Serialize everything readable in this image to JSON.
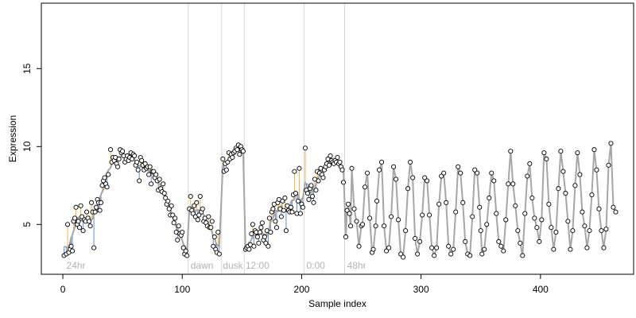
{
  "chart_data": {
    "type": "scatter",
    "title": "",
    "xlabel": "Sample index",
    "ylabel": "Expression",
    "xlim": [
      -18,
      478
    ],
    "ylim": [
      1.8,
      19.2
    ],
    "xticks": [
      0,
      100,
      200,
      300,
      400
    ],
    "yticks": [
      5,
      10,
      15
    ],
    "grid": false,
    "legend": "none",
    "colors": {
      "fit_line": "#a6a6a6",
      "residual_positive": "#f5b342",
      "residual_negative": "#5b8fd6",
      "point_stroke": "#000000",
      "point_fill": "#ffffff",
      "annotation": "#b3b3b3",
      "separator": "#d9d9d9"
    },
    "separators": [
      105,
      133,
      152,
      202,
      236
    ],
    "annotations": [
      {
        "x": 3,
        "text": "24hr"
      },
      {
        "x": 107,
        "text": "dawn"
      },
      {
        "x": 134,
        "text": "dusk"
      },
      {
        "x": 153,
        "text": "12:00"
      },
      {
        "x": 204,
        "text": "0:00"
      },
      {
        "x": 238,
        "text": "48hr"
      }
    ],
    "observed": [
      [
        1,
        3.0
      ],
      [
        3,
        3.1
      ],
      [
        4,
        5.0
      ],
      [
        5,
        3.2
      ],
      [
        6,
        3.4
      ],
      [
        7,
        3.6
      ],
      [
        8,
        3.3
      ],
      [
        9,
        5.2
      ],
      [
        10,
        5.4
      ],
      [
        11,
        6.1
      ],
      [
        12,
        5.0
      ],
      [
        13,
        5.2
      ],
      [
        14,
        4.8
      ],
      [
        15,
        6.2
      ],
      [
        16,
        5.5
      ],
      [
        17,
        4.6
      ],
      [
        18,
        5.3
      ],
      [
        19,
        5.2
      ],
      [
        20,
        5.8
      ],
      [
        21,
        5.4
      ],
      [
        22,
        5.2
      ],
      [
        23,
        4.9
      ],
      [
        24,
        6.4
      ],
      [
        25,
        5.8
      ],
      [
        26,
        3.5
      ],
      [
        27,
        5.8
      ],
      [
        28,
        6.1
      ],
      [
        29,
        6.6
      ],
      [
        30,
        6.4
      ],
      [
        31,
        5.9
      ],
      [
        32,
        6.4
      ],
      [
        33,
        7.5
      ],
      [
        34,
        7.8
      ],
      [
        35,
        8.0
      ],
      [
        36,
        7.6
      ],
      [
        37,
        7.4
      ],
      [
        38,
        8.2
      ],
      [
        40,
        9.8
      ],
      [
        41,
        9.0
      ],
      [
        42,
        9.3
      ],
      [
        43,
        9.1
      ],
      [
        44,
        9.3
      ],
      [
        45,
        8.9
      ],
      [
        46,
        8.7
      ],
      [
        47,
        9.2
      ],
      [
        48,
        9.8
      ],
      [
        49,
        9.6
      ],
      [
        50,
        9.7
      ],
      [
        51,
        9.4
      ],
      [
        52,
        9.0
      ],
      [
        53,
        9.2
      ],
      [
        54,
        9.4
      ],
      [
        55,
        9.1
      ],
      [
        56,
        9.3
      ],
      [
        57,
        9.6
      ],
      [
        58,
        9.2
      ],
      [
        59,
        9.5
      ],
      [
        60,
        9.4
      ],
      [
        61,
        8.8
      ],
      [
        62,
        9.0
      ],
      [
        63,
        8.5
      ],
      [
        64,
        7.8
      ],
      [
        65,
        9.3
      ],
      [
        66,
        9.1
      ],
      [
        67,
        8.8
      ],
      [
        68,
        8.5
      ],
      [
        69,
        8.9
      ],
      [
        70,
        8.6
      ],
      [
        71,
        8.7
      ],
      [
        72,
        8.2
      ],
      [
        73,
        8.7
      ],
      [
        74,
        7.6
      ],
      [
        75,
        8.4
      ],
      [
        76,
        8.4
      ],
      [
        77,
        8.0
      ],
      [
        78,
        8.2
      ],
      [
        79,
        7.8
      ],
      [
        80,
        7.2
      ],
      [
        81,
        7.9
      ],
      [
        82,
        7.3
      ],
      [
        83,
        7.1
      ],
      [
        84,
        7.6
      ],
      [
        85,
        7.0
      ],
      [
        86,
        6.7
      ],
      [
        87,
        6.3
      ],
      [
        88,
        6.5
      ],
      [
        89,
        6.0
      ],
      [
        90,
        5.6
      ],
      [
        91,
        6.2
      ],
      [
        92,
        5.6
      ],
      [
        93,
        5.1
      ],
      [
        94,
        5.4
      ],
      [
        95,
        4.5
      ],
      [
        96,
        4.0
      ],
      [
        97,
        4.9
      ],
      [
        98,
        4.4
      ],
      [
        99,
        4.3
      ],
      [
        100,
        4.5
      ],
      [
        101,
        3.5
      ],
      [
        102,
        3.1
      ],
      [
        103,
        3.3
      ],
      [
        104,
        3.0
      ],
      [
        106,
        6.0
      ],
      [
        107,
        6.8
      ],
      [
        108,
        5.9
      ],
      [
        109,
        5.7
      ],
      [
        110,
        6.2
      ],
      [
        111,
        5.5
      ],
      [
        112,
        6.4
      ],
      [
        113,
        5.3
      ],
      [
        114,
        5.6
      ],
      [
        115,
        6.8
      ],
      [
        116,
        5.8
      ],
      [
        117,
        6.0
      ],
      [
        118,
        5.2
      ],
      [
        119,
        5.4
      ],
      [
        120,
        5.1
      ],
      [
        121,
        4.9
      ],
      [
        122,
        5.5
      ],
      [
        123,
        4.8
      ],
      [
        124,
        4.8
      ],
      [
        125,
        5.2
      ],
      [
        126,
        3.6
      ],
      [
        127,
        4.2
      ],
      [
        128,
        3.4
      ],
      [
        129,
        3.2
      ],
      [
        130,
        4.5
      ],
      [
        131,
        3.1
      ],
      [
        134,
        9.2
      ],
      [
        135,
        8.4
      ],
      [
        136,
        8.9
      ],
      [
        137,
        8.5
      ],
      [
        138,
        9.0
      ],
      [
        139,
        9.6
      ],
      [
        140,
        9.2
      ],
      [
        141,
        9.5
      ],
      [
        142,
        9.3
      ],
      [
        143,
        9.6
      ],
      [
        144,
        9.7
      ],
      [
        145,
        9.9
      ],
      [
        146,
        9.8
      ],
      [
        147,
        10.1
      ],
      [
        148,
        9.5
      ],
      [
        149,
        10.0
      ],
      [
        150,
        9.8
      ],
      [
        151,
        9.7
      ],
      [
        153,
        3.4
      ],
      [
        154,
        3.5
      ],
      [
        155,
        3.6
      ],
      [
        156,
        3.4
      ],
      [
        157,
        3.7
      ],
      [
        158,
        4.4
      ],
      [
        159,
        5.0
      ],
      [
        160,
        3.6
      ],
      [
        161,
        4.6
      ],
      [
        162,
        4.5
      ],
      [
        163,
        4.2
      ],
      [
        164,
        3.8
      ],
      [
        165,
        4.5
      ],
      [
        166,
        4.8
      ],
      [
        167,
        5.1
      ],
      [
        168,
        4.0
      ],
      [
        169,
        4.2
      ],
      [
        170,
        3.8
      ],
      [
        171,
        4.6
      ],
      [
        172,
        3.6
      ],
      [
        173,
        5.4
      ],
      [
        174,
        4.5
      ],
      [
        175,
        5.8
      ],
      [
        176,
        6.0
      ],
      [
        177,
        6.3
      ],
      [
        178,
        5.2
      ],
      [
        179,
        4.8
      ],
      [
        180,
        6.4
      ],
      [
        181,
        6.6
      ],
      [
        182,
        6.0
      ],
      [
        183,
        5.5
      ],
      [
        184,
        6.5
      ],
      [
        185,
        5.9
      ],
      [
        186,
        6.7
      ],
      [
        187,
        4.6
      ],
      [
        188,
        6.2
      ],
      [
        189,
        5.9
      ],
      [
        190,
        5.8
      ],
      [
        191,
        6.1
      ],
      [
        192,
        5.8
      ],
      [
        193,
        6.9
      ],
      [
        194,
        8.4
      ],
      [
        195,
        7.0
      ],
      [
        196,
        5.7
      ],
      [
        197,
        6.5
      ],
      [
        198,
        8.6
      ],
      [
        199,
        5.7
      ],
      [
        200,
        6.3
      ],
      [
        201,
        6.1
      ],
      [
        203,
        9.9
      ],
      [
        204,
        7.2
      ],
      [
        205,
        7.0
      ],
      [
        206,
        6.6
      ],
      [
        207,
        7.3
      ],
      [
        208,
        7.5
      ],
      [
        209,
        6.8
      ],
      [
        210,
        6.4
      ],
      [
        211,
        7.9
      ],
      [
        212,
        7.2
      ],
      [
        213,
        8.4
      ],
      [
        214,
        7.8
      ],
      [
        215,
        8.3
      ],
      [
        216,
        8.6
      ],
      [
        217,
        8.2
      ],
      [
        218,
        8.0
      ],
      [
        219,
        8.5
      ],
      [
        220,
        8.7
      ],
      [
        221,
        8.9
      ],
      [
        222,
        9.2
      ],
      [
        223,
        8.8
      ],
      [
        224,
        9.4
      ],
      [
        225,
        9.1
      ],
      [
        226,
        9.0
      ],
      [
        227,
        8.9
      ],
      [
        228,
        9.1
      ],
      [
        229,
        9.0
      ],
      [
        230,
        9.3
      ],
      [
        231,
        8.9
      ],
      [
        232,
        9.0
      ],
      [
        233,
        8.7
      ],
      [
        234,
        8.5
      ],
      [
        235,
        7.7
      ],
      [
        237,
        4.2
      ],
      [
        238,
        5.9
      ],
      [
        239,
        6.3
      ],
      [
        240,
        5.7
      ],
      [
        241,
        4.9
      ],
      [
        242,
        8.6
      ],
      [
        244,
        6.0
      ],
      [
        246,
        5.2
      ],
      [
        248,
        3.6
      ],
      [
        250,
        4.9
      ],
      [
        251,
        5.0
      ],
      [
        253,
        7.4
      ],
      [
        255,
        8.3
      ],
      [
        257,
        5.4
      ],
      [
        259,
        3.2
      ],
      [
        260,
        3.4
      ],
      [
        262,
        4.9
      ],
      [
        263,
        6.5
      ],
      [
        265,
        8.5
      ],
      [
        267,
        9.0
      ],
      [
        269,
        4.9
      ],
      [
        271,
        3.3
      ],
      [
        273,
        3.5
      ],
      [
        275,
        5.5
      ],
      [
        277,
        8.7
      ],
      [
        279,
        7.9
      ],
      [
        281,
        5.3
      ],
      [
        283,
        3.1
      ],
      [
        285,
        2.9
      ],
      [
        287,
        4.6
      ],
      [
        289,
        7.3
      ],
      [
        291,
        9.0
      ],
      [
        293,
        8.0
      ],
      [
        295,
        4.1
      ],
      [
        297,
        3.1
      ],
      [
        299,
        3.9
      ],
      [
        301,
        5.6
      ],
      [
        303,
        8.0
      ],
      [
        305,
        7.8
      ],
      [
        307,
        5.6
      ],
      [
        309,
        3.5
      ],
      [
        311,
        3.0
      ],
      [
        313,
        3.5
      ],
      [
        315,
        6.3
      ],
      [
        317,
        8.1
      ],
      [
        319,
        8.3
      ],
      [
        321,
        6.4
      ],
      [
        323,
        3.6
      ],
      [
        325,
        3.1
      ],
      [
        327,
        3.4
      ],
      [
        329,
        5.8
      ],
      [
        331,
        8.7
      ],
      [
        333,
        8.3
      ],
      [
        335,
        6.4
      ],
      [
        337,
        3.9
      ],
      [
        339,
        3.1
      ],
      [
        341,
        3.0
      ],
      [
        343,
        5.5
      ],
      [
        345,
        8.5
      ],
      [
        347,
        8.3
      ],
      [
        349,
        6.1
      ],
      [
        350,
        4.6
      ],
      [
        351,
        3.1
      ],
      [
        353,
        3.4
      ],
      [
        355,
        5.0
      ],
      [
        357,
        6.7
      ],
      [
        359,
        8.3
      ],
      [
        361,
        7.8
      ],
      [
        363,
        5.7
      ],
      [
        365,
        3.9
      ],
      [
        367,
        3.6
      ],
      [
        369,
        3.3
      ],
      [
        371,
        5.3
      ],
      [
        373,
        7.6
      ],
      [
        375,
        9.7
      ],
      [
        377,
        7.6
      ],
      [
        379,
        6.2
      ],
      [
        381,
        4.6
      ],
      [
        383,
        3.8
      ],
      [
        385,
        3.0
      ],
      [
        387,
        5.7
      ],
      [
        389,
        8.1
      ],
      [
        391,
        8.9
      ],
      [
        393,
        6.7
      ],
      [
        395,
        5.4
      ],
      [
        397,
        4.8
      ],
      [
        399,
        3.9
      ],
      [
        401,
        5.3
      ],
      [
        403,
        9.6
      ],
      [
        405,
        9.2
      ],
      [
        407,
        6.3
      ],
      [
        409,
        4.8
      ],
      [
        411,
        3.4
      ],
      [
        413,
        4.5
      ],
      [
        415,
        7.3
      ],
      [
        417,
        9.7
      ],
      [
        419,
        8.4
      ],
      [
        421,
        7.0
      ],
      [
        423,
        5.2
      ],
      [
        425,
        3.4
      ],
      [
        427,
        4.6
      ],
      [
        429,
        7.5
      ],
      [
        431,
        9.6
      ],
      [
        433,
        8.2
      ],
      [
        435,
        5.8
      ],
      [
        437,
        4.9
      ],
      [
        439,
        3.5
      ],
      [
        441,
        4.6
      ],
      [
        443,
        6.9
      ],
      [
        445,
        9.8
      ],
      [
        447,
        8.5
      ],
      [
        449,
        6.0
      ],
      [
        451,
        4.6
      ],
      [
        453,
        3.5
      ],
      [
        455,
        4.7
      ],
      [
        457,
        8.8
      ],
      [
        459,
        10.2
      ],
      [
        461,
        6.1
      ],
      [
        463,
        5.8
      ]
    ]
  }
}
